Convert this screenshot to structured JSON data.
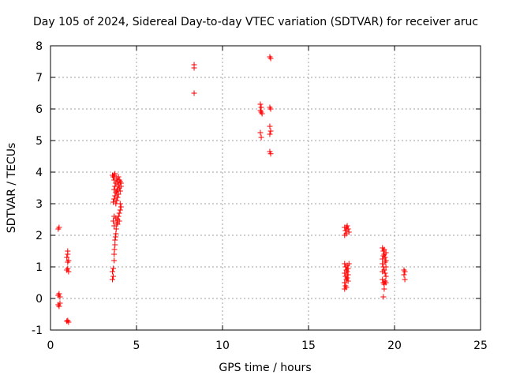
{
  "chart_data": {
    "type": "scatter",
    "title": "Day 105 of 2024, Sidereal Day-to-day VTEC variation (SDTVAR) for receiver aruc",
    "xlabel": "GPS time / hours",
    "ylabel": "SDTVAR / TECUs",
    "xlim": [
      0,
      25
    ],
    "ylim": [
      -1,
      8
    ],
    "xticks": [
      0,
      5,
      10,
      15,
      20,
      25
    ],
    "yticks": [
      -1,
      0,
      1,
      2,
      3,
      4,
      5,
      6,
      7,
      8
    ],
    "grid": true,
    "marker": "+",
    "color": "#ff0000",
    "series": [
      {
        "name": "SDTVAR",
        "points": [
          [
            0.45,
            2.2
          ],
          [
            0.5,
            2.25
          ],
          [
            0.45,
            0.1
          ],
          [
            0.5,
            0.15
          ],
          [
            0.55,
            0.05
          ],
          [
            0.45,
            -0.2
          ],
          [
            0.5,
            -0.25
          ],
          [
            0.55,
            -0.15
          ],
          [
            0.95,
            -0.72
          ],
          [
            1.0,
            -0.7
          ],
          [
            1.05,
            -0.75
          ],
          [
            1.0,
            1.5
          ],
          [
            1.0,
            1.4
          ],
          [
            0.95,
            1.3
          ],
          [
            1.05,
            1.2
          ],
          [
            1.0,
            1.15
          ],
          [
            0.95,
            0.9
          ],
          [
            1.0,
            0.95
          ],
          [
            1.05,
            0.85
          ],
          [
            3.6,
            0.6
          ],
          [
            3.65,
            0.7
          ],
          [
            3.6,
            0.85
          ],
          [
            3.65,
            0.95
          ],
          [
            3.7,
            1.2
          ],
          [
            3.7,
            1.4
          ],
          [
            3.72,
            1.55
          ],
          [
            3.75,
            1.7
          ],
          [
            3.75,
            1.85
          ],
          [
            3.78,
            1.95
          ],
          [
            3.8,
            2.05
          ],
          [
            3.82,
            2.2
          ],
          [
            3.7,
            2.3
          ],
          [
            3.65,
            2.45
          ],
          [
            3.7,
            2.6
          ],
          [
            3.85,
            2.4
          ],
          [
            3.9,
            2.5
          ],
          [
            3.95,
            2.6
          ],
          [
            4.0,
            2.7
          ],
          [
            4.05,
            2.8
          ],
          [
            4.1,
            2.9
          ],
          [
            4.05,
            3.0
          ],
          [
            3.9,
            2.35
          ],
          [
            3.8,
            2.55
          ],
          [
            4.0,
            2.45
          ],
          [
            3.65,
            3.05
          ],
          [
            3.7,
            3.15
          ],
          [
            3.75,
            3.25
          ],
          [
            3.8,
            3.35
          ],
          [
            3.7,
            3.45
          ],
          [
            3.75,
            3.55
          ],
          [
            3.8,
            3.65
          ],
          [
            3.7,
            3.75
          ],
          [
            3.65,
            3.85
          ],
          [
            3.7,
            3.9
          ],
          [
            3.85,
            3.8
          ],
          [
            3.9,
            3.7
          ],
          [
            3.95,
            3.6
          ],
          [
            4.0,
            3.5
          ],
          [
            4.05,
            3.4
          ],
          [
            4.1,
            3.55
          ],
          [
            4.1,
            3.65
          ],
          [
            3.95,
            3.3
          ],
          [
            3.9,
            3.2
          ],
          [
            3.85,
            3.1
          ],
          [
            3.8,
            3.0
          ],
          [
            3.9,
            3.45
          ],
          [
            4.0,
            3.75
          ],
          [
            3.75,
            3.95
          ],
          [
            3.6,
            3.9
          ],
          [
            3.95,
            3.85
          ],
          [
            4.05,
            3.7
          ],
          [
            3.85,
            3.4
          ],
          [
            8.35,
            7.4
          ],
          [
            8.35,
            7.3
          ],
          [
            8.35,
            6.5
          ],
          [
            12.2,
            6.15
          ],
          [
            12.25,
            6.05
          ],
          [
            12.2,
            5.95
          ],
          [
            12.25,
            5.9
          ],
          [
            12.3,
            5.85
          ],
          [
            12.2,
            5.25
          ],
          [
            12.25,
            5.1
          ],
          [
            12.75,
            7.65
          ],
          [
            12.8,
            7.6
          ],
          [
            12.75,
            6.05
          ],
          [
            12.8,
            6.0
          ],
          [
            12.75,
            5.45
          ],
          [
            12.8,
            5.3
          ],
          [
            12.75,
            5.2
          ],
          [
            12.75,
            4.65
          ],
          [
            12.8,
            4.58
          ],
          [
            17.1,
            2.25
          ],
          [
            17.15,
            2.15
          ],
          [
            17.2,
            2.05
          ],
          [
            17.25,
            2.3
          ],
          [
            17.3,
            2.2
          ],
          [
            17.35,
            2.1
          ],
          [
            17.1,
            2.0
          ],
          [
            17.2,
            2.25
          ],
          [
            17.1,
            1.1
          ],
          [
            17.15,
            1.0
          ],
          [
            17.2,
            0.9
          ],
          [
            17.1,
            0.8
          ],
          [
            17.15,
            0.7
          ],
          [
            17.2,
            0.6
          ],
          [
            17.1,
            0.5
          ],
          [
            17.15,
            0.4
          ],
          [
            17.2,
            0.35
          ],
          [
            17.25,
            1.05
          ],
          [
            17.3,
            0.95
          ],
          [
            17.25,
            0.85
          ],
          [
            17.3,
            0.75
          ],
          [
            17.25,
            0.65
          ],
          [
            17.3,
            0.55
          ],
          [
            17.35,
            1.1
          ],
          [
            17.1,
            0.3
          ],
          [
            19.3,
            1.6
          ],
          [
            19.35,
            1.5
          ],
          [
            19.4,
            1.4
          ],
          [
            19.45,
            1.3
          ],
          [
            19.5,
            1.2
          ],
          [
            19.3,
            1.1
          ],
          [
            19.35,
            1.0
          ],
          [
            19.4,
            0.9
          ],
          [
            19.45,
            0.8
          ],
          [
            19.5,
            0.7
          ],
          [
            19.3,
            0.6
          ],
          [
            19.35,
            0.5
          ],
          [
            19.4,
            0.45
          ],
          [
            19.45,
            0.55
          ],
          [
            19.5,
            0.5
          ],
          [
            19.3,
            1.25
          ],
          [
            19.4,
            1.55
          ],
          [
            19.5,
            1.45
          ],
          [
            19.35,
            1.35
          ],
          [
            19.45,
            1.15
          ],
          [
            19.3,
            0.85
          ],
          [
            19.4,
            0.3
          ],
          [
            19.35,
            0.05
          ],
          [
            19.5,
            1.0
          ],
          [
            20.55,
            0.9
          ],
          [
            20.6,
            0.85
          ],
          [
            20.55,
            0.75
          ],
          [
            20.6,
            0.6
          ]
        ]
      }
    ]
  }
}
